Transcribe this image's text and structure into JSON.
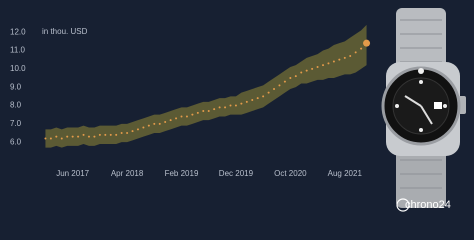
{
  "chart_data": {
    "type": "line",
    "y_label": "in thou. USD",
    "x": [
      "2017-01",
      "2017-02",
      "2017-03",
      "2017-04",
      "2017-05",
      "2017-06",
      "2017-07",
      "2017-08",
      "2017-09",
      "2017-10",
      "2017-11",
      "2017-12",
      "2018-01",
      "2018-02",
      "2018-03",
      "2018-04",
      "2018-05",
      "2018-06",
      "2018-07",
      "2018-08",
      "2018-09",
      "2018-10",
      "2018-11",
      "2018-12",
      "2019-01",
      "2019-02",
      "2019-03",
      "2019-04",
      "2019-05",
      "2019-06",
      "2019-07",
      "2019-08",
      "2019-09",
      "2019-10",
      "2019-11",
      "2019-12",
      "2020-01",
      "2020-02",
      "2020-03",
      "2020-04",
      "2020-05",
      "2020-06",
      "2020-07",
      "2020-08",
      "2020-09",
      "2020-10",
      "2020-11",
      "2020-12",
      "2021-01",
      "2021-02",
      "2021-03",
      "2021-04",
      "2021-05",
      "2021-06",
      "2021-07",
      "2021-08",
      "2021-09",
      "2021-10",
      "2021-11",
      "2021-12"
    ],
    "values": [
      6.2,
      6.2,
      6.3,
      6.2,
      6.3,
      6.3,
      6.3,
      6.4,
      6.3,
      6.3,
      6.4,
      6.4,
      6.4,
      6.4,
      6.5,
      6.5,
      6.6,
      6.7,
      6.8,
      6.9,
      7.0,
      7.0,
      7.1,
      7.2,
      7.3,
      7.4,
      7.4,
      7.5,
      7.6,
      7.7,
      7.7,
      7.8,
      7.9,
      7.9,
      8.0,
      8.0,
      8.1,
      8.2,
      8.3,
      8.4,
      8.5,
      8.7,
      8.9,
      9.1,
      9.3,
      9.5,
      9.6,
      9.8,
      9.9,
      10.0,
      10.1,
      10.2,
      10.3,
      10.4,
      10.5,
      10.6,
      10.7,
      10.9,
      11.1,
      11.4
    ],
    "band_low": [
      5.7,
      5.7,
      5.8,
      5.7,
      5.8,
      5.8,
      5.8,
      5.9,
      5.8,
      5.8,
      5.9,
      5.9,
      5.9,
      5.9,
      6.0,
      6.0,
      6.1,
      6.2,
      6.3,
      6.4,
      6.5,
      6.5,
      6.6,
      6.7,
      6.8,
      6.9,
      6.9,
      7.0,
      7.1,
      7.2,
      7.2,
      7.3,
      7.4,
      7.4,
      7.5,
      7.5,
      7.5,
      7.6,
      7.7,
      7.8,
      7.9,
      8.1,
      8.3,
      8.5,
      8.7,
      8.9,
      9.0,
      9.2,
      9.2,
      9.3,
      9.4,
      9.4,
      9.5,
      9.5,
      9.6,
      9.7,
      9.7,
      9.8,
      10.0,
      10.2
    ],
    "band_high": [
      6.7,
      6.7,
      6.8,
      6.7,
      6.8,
      6.8,
      6.8,
      6.9,
      6.8,
      6.8,
      6.9,
      6.9,
      6.9,
      6.9,
      7.0,
      7.0,
      7.1,
      7.2,
      7.3,
      7.4,
      7.5,
      7.5,
      7.6,
      7.7,
      7.8,
      7.9,
      7.9,
      8.0,
      8.1,
      8.2,
      8.2,
      8.3,
      8.4,
      8.4,
      8.5,
      8.5,
      8.7,
      8.8,
      8.9,
      9.0,
      9.1,
      9.3,
      9.5,
      9.7,
      9.9,
      10.1,
      10.2,
      10.4,
      10.6,
      10.7,
      10.8,
      11.0,
      11.1,
      11.3,
      11.4,
      11.5,
      11.7,
      11.9,
      12.1,
      12.4
    ],
    "color": "#e39a4a",
    "band_color": "#5b5a34",
    "xlim": [
      "2016-12",
      "2022-01"
    ],
    "xticks": [
      {
        "value": "2017-06",
        "label": "Jun 2017"
      },
      {
        "value": "2018-04",
        "label": "Apr 2018"
      },
      {
        "value": "2019-02",
        "label": "Feb 2019"
      },
      {
        "value": "2019-12",
        "label": "Dec 2019"
      },
      {
        "value": "2020-10",
        "label": "Oct 2020"
      },
      {
        "value": "2021-08",
        "label": "Aug 2021"
      }
    ],
    "ylim": [
      5.3,
      12.5
    ],
    "yticks": [
      {
        "value": 6,
        "label": "6.0"
      },
      {
        "value": 7,
        "label": "7.0"
      },
      {
        "value": 8,
        "label": "8.0"
      },
      {
        "value": 9,
        "label": "9.0"
      },
      {
        "value": 10,
        "label": "10.0"
      },
      {
        "value": 11,
        "label": "11.0"
      },
      {
        "value": 12,
        "label": "12.0"
      }
    ],
    "grid": false
  },
  "logo": "chrono24"
}
